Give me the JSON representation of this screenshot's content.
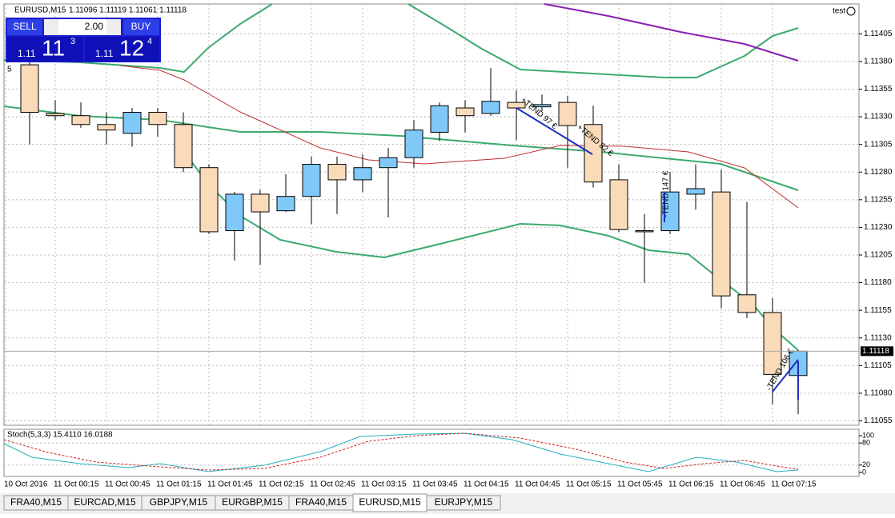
{
  "header": {
    "symbol": "EURUSD,M15",
    "ohlc": "1.11096 1.11119 1.11061 1.11118",
    "account": "test",
    "left_marker": "5"
  },
  "trade_panel": {
    "sell": "SELL",
    "buy": "BUY",
    "lot": "2.00",
    "bid_big": "1.11",
    "bid_main": "11",
    "bid_small": "3",
    "ask_big": "1.11",
    "ask_main": "12",
    "ask_small": "4"
  },
  "chart_data": {
    "type": "candlestick",
    "ylim": [
      1.11051,
      1.11432
    ],
    "yticks": [
      {
        "value": 1.11405,
        "label": "1.11405"
      },
      {
        "value": 1.1138,
        "label": "1.11380"
      },
      {
        "value": 1.11355,
        "label": "1.11355"
      },
      {
        "value": 1.1133,
        "label": "1.11330"
      },
      {
        "value": 1.11305,
        "label": "1.11305"
      },
      {
        "value": 1.1128,
        "label": "1.11280"
      },
      {
        "value": 1.11255,
        "label": "1.11255"
      },
      {
        "value": 1.1123,
        "label": "1.11230"
      },
      {
        "value": 1.11205,
        "label": "1.11205"
      },
      {
        "value": 1.1118,
        "label": "1.11180"
      },
      {
        "value": 1.11155,
        "label": "1.11155"
      },
      {
        "value": 1.1113,
        "label": "1.11130"
      },
      {
        "value": 1.11105,
        "label": "1.11105"
      },
      {
        "value": 1.1108,
        "label": "1.11080"
      },
      {
        "value": 1.11055,
        "label": "1.11055"
      }
    ],
    "current_price": {
      "value": 1.11118,
      "label": "1.11118"
    },
    "time_labels": [
      "10 Oct 2016",
      "11 Oct 00:15",
      "11 Oct 00:45",
      "11 Oct 01:15",
      "11 Oct 01:45",
      "11 Oct 02:15",
      "11 Oct 02:45",
      "11 Oct 03:15",
      "11 Oct 03:45",
      "11 Oct 04:15",
      "11 Oct 04:45",
      "11 Oct 05:15",
      "11 Oct 05:45",
      "11 Oct 06:15",
      "11 Oct 06:45",
      "11 Oct 07:15"
    ],
    "candles": [
      {
        "open": 1.11377,
        "high": 1.11395,
        "low": 1.11305,
        "close": 1.11334
      },
      {
        "open": 1.11333,
        "high": 1.11345,
        "low": 1.11327,
        "close": 1.11331
      },
      {
        "open": 1.11331,
        "high": 1.11343,
        "low": 1.1132,
        "close": 1.11323
      },
      {
        "open": 1.11323,
        "high": 1.11334,
        "low": 1.11305,
        "close": 1.11318
      },
      {
        "open": 1.11315,
        "high": 1.11338,
        "low": 1.11303,
        "close": 1.11334
      },
      {
        "open": 1.11334,
        "high": 1.11338,
        "low": 1.11312,
        "close": 1.11323
      },
      {
        "open": 1.11323,
        "high": 1.11334,
        "low": 1.1128,
        "close": 1.11284
      },
      {
        "open": 1.11284,
        "high": 1.11287,
        "low": 1.11224,
        "close": 1.11226
      },
      {
        "open": 1.11227,
        "high": 1.11262,
        "low": 1.112,
        "close": 1.1126
      },
      {
        "open": 1.1126,
        "high": 1.11264,
        "low": 1.11196,
        "close": 1.11244
      },
      {
        "open": 1.11245,
        "high": 1.11278,
        "low": 1.11244,
        "close": 1.11258
      },
      {
        "open": 1.11258,
        "high": 1.11294,
        "low": 1.11233,
        "close": 1.11287
      },
      {
        "open": 1.11287,
        "high": 1.11294,
        "low": 1.11242,
        "close": 1.11273
      },
      {
        "open": 1.11273,
        "high": 1.11296,
        "low": 1.11262,
        "close": 1.11284
      },
      {
        "open": 1.11284,
        "high": 1.11302,
        "low": 1.11239,
        "close": 1.11293
      },
      {
        "open": 1.11293,
        "high": 1.11327,
        "low": 1.11284,
        "close": 1.11318
      },
      {
        "open": 1.11316,
        "high": 1.11343,
        "low": 1.11308,
        "close": 1.1134
      },
      {
        "open": 1.11338,
        "high": 1.11345,
        "low": 1.11316,
        "close": 1.11331
      },
      {
        "open": 1.11333,
        "high": 1.11374,
        "low": 1.11331,
        "close": 1.11344
      },
      {
        "open": 1.11343,
        "high": 1.11354,
        "low": 1.11309,
        "close": 1.11338
      },
      {
        "open": 1.11339,
        "high": 1.1135,
        "low": 1.11335,
        "close": 1.11341
      },
      {
        "open": 1.11343,
        "high": 1.11349,
        "low": 1.11284,
        "close": 1.11322
      },
      {
        "open": 1.11323,
        "high": 1.1134,
        "low": 1.11266,
        "close": 1.11271
      },
      {
        "open": 1.11273,
        "high": 1.11287,
        "low": 1.11226,
        "close": 1.11228
      },
      {
        "open": 1.11227,
        "high": 1.11242,
        "low": 1.1118,
        "close": 1.11226
      },
      {
        "open": 1.11227,
        "high": 1.1128,
        "low": 1.11224,
        "close": 1.11262
      },
      {
        "open": 1.1126,
        "high": 1.11287,
        "low": 1.11246,
        "close": 1.11265
      },
      {
        "open": 1.11262,
        "high": 1.11282,
        "low": 1.11157,
        "close": 1.11168
      },
      {
        "open": 1.11169,
        "high": 1.11253,
        "low": 1.11148,
        "close": 1.11153
      },
      {
        "open": 1.11153,
        "high": 1.11166,
        "low": 1.1107,
        "close": 1.11097
      },
      {
        "open": 1.11096,
        "high": 1.11119,
        "low": 1.11061,
        "close": 1.11118
      }
    ],
    "bull_color": "#80c8f8",
    "bear_color": "#f9dab9",
    "annotations": [
      "+TEND 97 €",
      "+TEND 82 €",
      "-TEND 147 €",
      "-TEND 106 €"
    ]
  },
  "stochastic": {
    "label": "Stoch(5,3,3) 15.4110 16.0188",
    "ticks": [
      100,
      80,
      20,
      0
    ]
  },
  "tabs": [
    "FRA40,M15",
    "EURCAD,M15",
    "GBPJPY,M15",
    "EURGBP,M15",
    "FRA40,M15",
    "EURUSD,M15",
    "EURJPY,M15"
  ],
  "active_tab": 5
}
